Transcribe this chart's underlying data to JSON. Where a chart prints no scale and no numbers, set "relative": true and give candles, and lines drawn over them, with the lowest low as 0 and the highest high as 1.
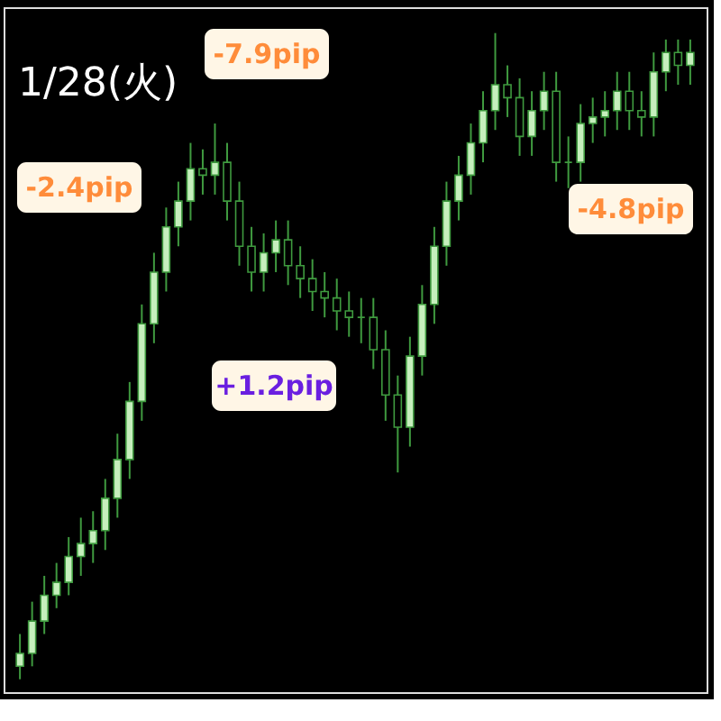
{
  "chart_data": {
    "type": "candlestick",
    "title": "1/28(火)",
    "relative": true,
    "categories": [
      null,
      null,
      null,
      null,
      null,
      null,
      null,
      null,
      null,
      null,
      null,
      null,
      null,
      null,
      null,
      null,
      null,
      null,
      null,
      null,
      null,
      null,
      null,
      null,
      null,
      null,
      null,
      null,
      null,
      null,
      null,
      null,
      null,
      null,
      null,
      null,
      null,
      null,
      null,
      null,
      null,
      null,
      null,
      null,
      null,
      null,
      null,
      null,
      null,
      null,
      null,
      null,
      null,
      null,
      null,
      null
    ],
    "series": [
      {
        "color": "#3f9a3f",
        "ohlc": [
          [
            0.02,
            0.07,
            0.0,
            0.04
          ],
          [
            0.04,
            0.12,
            0.02,
            0.09
          ],
          [
            0.09,
            0.16,
            0.07,
            0.13
          ],
          [
            0.13,
            0.18,
            0.11,
            0.15
          ],
          [
            0.15,
            0.22,
            0.13,
            0.19
          ],
          [
            0.19,
            0.25,
            0.16,
            0.21
          ],
          [
            0.21,
            0.26,
            0.18,
            0.23
          ],
          [
            0.23,
            0.31,
            0.2,
            0.28
          ],
          [
            0.28,
            0.38,
            0.25,
            0.34
          ],
          [
            0.34,
            0.46,
            0.31,
            0.43
          ],
          [
            0.43,
            0.58,
            0.4,
            0.55
          ],
          [
            0.55,
            0.66,
            0.52,
            0.63
          ],
          [
            0.63,
            0.73,
            0.6,
            0.7
          ],
          [
            0.7,
            0.77,
            0.67,
            0.74
          ],
          [
            0.74,
            0.83,
            0.71,
            0.79
          ],
          [
            0.79,
            0.82,
            0.75,
            0.78
          ],
          [
            0.78,
            0.86,
            0.75,
            0.8
          ],
          [
            0.8,
            0.83,
            0.71,
            0.74
          ],
          [
            0.74,
            0.77,
            0.64,
            0.67
          ],
          [
            0.67,
            0.7,
            0.6,
            0.63
          ],
          [
            0.63,
            0.69,
            0.6,
            0.66
          ],
          [
            0.66,
            0.71,
            0.63,
            0.68
          ],
          [
            0.68,
            0.71,
            0.61,
            0.64
          ],
          [
            0.64,
            0.67,
            0.59,
            0.62
          ],
          [
            0.62,
            0.65,
            0.57,
            0.6
          ],
          [
            0.6,
            0.63,
            0.56,
            0.59
          ],
          [
            0.59,
            0.62,
            0.54,
            0.57
          ],
          [
            0.57,
            0.6,
            0.53,
            0.56
          ],
          [
            0.56,
            0.59,
            0.52,
            0.56
          ],
          [
            0.56,
            0.59,
            0.48,
            0.51
          ],
          [
            0.51,
            0.54,
            0.4,
            0.44
          ],
          [
            0.44,
            0.47,
            0.32,
            0.39
          ],
          [
            0.39,
            0.53,
            0.36,
            0.5
          ],
          [
            0.5,
            0.61,
            0.47,
            0.58
          ],
          [
            0.58,
            0.7,
            0.55,
            0.67
          ],
          [
            0.67,
            0.77,
            0.64,
            0.74
          ],
          [
            0.74,
            0.81,
            0.71,
            0.78
          ],
          [
            0.78,
            0.86,
            0.75,
            0.83
          ],
          [
            0.83,
            0.91,
            0.8,
            0.88
          ],
          [
            0.88,
            1.0,
            0.85,
            0.92
          ],
          [
            0.92,
            0.95,
            0.87,
            0.9
          ],
          [
            0.9,
            0.93,
            0.81,
            0.84
          ],
          [
            0.84,
            0.91,
            0.81,
            0.88
          ],
          [
            0.88,
            0.94,
            0.85,
            0.91
          ],
          [
            0.91,
            0.94,
            0.77,
            0.8
          ],
          [
            0.8,
            0.84,
            0.76,
            0.8
          ],
          [
            0.8,
            0.89,
            0.77,
            0.86
          ],
          [
            0.86,
            0.9,
            0.83,
            0.87
          ],
          [
            0.87,
            0.91,
            0.84,
            0.88
          ],
          [
            0.88,
            0.94,
            0.85,
            0.91
          ],
          [
            0.91,
            0.94,
            0.85,
            0.88
          ],
          [
            0.88,
            0.91,
            0.84,
            0.87
          ],
          [
            0.87,
            0.97,
            0.84,
            0.94
          ],
          [
            0.94,
            0.99,
            0.91,
            0.97
          ],
          [
            0.97,
            0.99,
            0.92,
            0.95
          ],
          [
            0.95,
            0.99,
            0.92,
            0.97
          ]
        ]
      }
    ],
    "annotations": [
      "-2.4pip",
      "-7.9pip",
      "+1.2pip",
      "-4.8pip"
    ]
  }
}
